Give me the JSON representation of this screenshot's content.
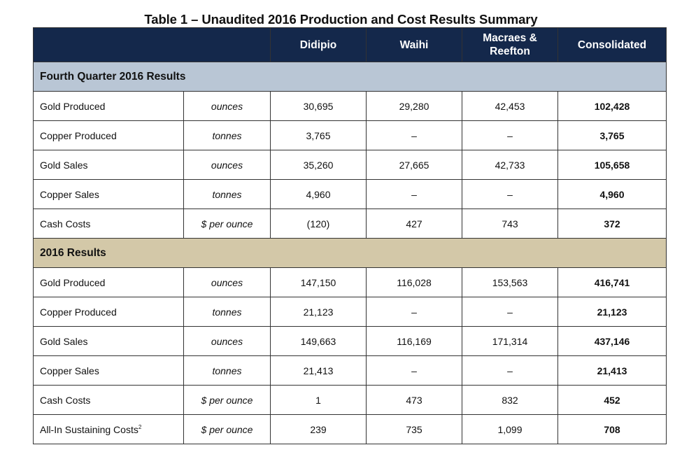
{
  "title": "Table 1 – Unaudited 2016 Production and Cost Results Summary",
  "columns": {
    "didipio": "Didipio",
    "waihi": "Waihi",
    "macraes_line1": "Macraes &",
    "macraes_line2": "Reefton",
    "consolidated": "Consolidated"
  },
  "sections": [
    {
      "title": "Fourth Quarter 2016 Results",
      "rows": [
        {
          "label": "Gold Produced",
          "unit": "ounces",
          "didipio": "30,695",
          "waihi": "29,280",
          "macraes": "42,453",
          "consolidated": "102,428"
        },
        {
          "label": "Copper Produced",
          "unit": "tonnes",
          "didipio": "3,765",
          "waihi": "–",
          "macraes": "–",
          "consolidated": "3,765"
        },
        {
          "label": "Gold Sales",
          "unit": "ounces",
          "didipio": "35,260",
          "waihi": "27,665",
          "macraes": "42,733",
          "consolidated": "105,658"
        },
        {
          "label": "Copper Sales",
          "unit": "tonnes",
          "didipio": "4,960",
          "waihi": "–",
          "macraes": "–",
          "consolidated": "4,960"
        },
        {
          "label": "Cash Costs",
          "unit": "$ per ounce",
          "didipio": "(120)",
          "waihi": "427",
          "macraes": "743",
          "consolidated": "372"
        }
      ]
    },
    {
      "title": "2016 Results",
      "rows": [
        {
          "label": "Gold Produced",
          "unit": "ounces",
          "didipio": "147,150",
          "waihi": "116,028",
          "macraes": "153,563",
          "consolidated": "416,741"
        },
        {
          "label": "Copper Produced",
          "unit": "tonnes",
          "didipio": "21,123",
          "waihi": "–",
          "macraes": "–",
          "consolidated": "21,123"
        },
        {
          "label": "Gold Sales",
          "unit": "ounces",
          "didipio": "149,663",
          "waihi": "116,169",
          "macraes": "171,314",
          "consolidated": "437,146"
        },
        {
          "label": "Copper Sales",
          "unit": "tonnes",
          "didipio": "21,413",
          "waihi": "–",
          "macraes": "–",
          "consolidated": "21,413"
        },
        {
          "label": "Cash Costs",
          "unit": "$ per ounce",
          "didipio": "1",
          "waihi": "473",
          "macraes": "832",
          "consolidated": "452"
        },
        {
          "label": "All-In Sustaining Costs",
          "footnote": "2",
          "unit": "$ per ounce",
          "didipio": "239",
          "waihi": "735",
          "macraes": "1,099",
          "consolidated": "708"
        }
      ]
    }
  ]
}
